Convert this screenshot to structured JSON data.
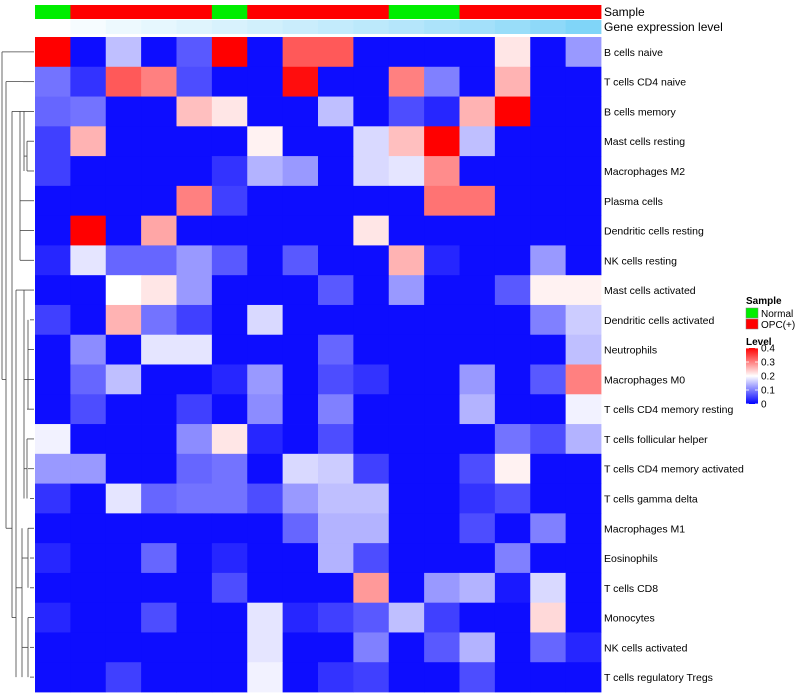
{
  "chart_data": {
    "type": "heatmap",
    "rows": [
      "B cells naive",
      "T cells CD4 naive",
      "B cells memory",
      "Mast cells resting",
      "Macrophages M2",
      "Plasma cells",
      "Dendritic cells resting",
      "NK cells resting",
      "Mast cells activated",
      "Dendritic cells activated",
      "Neutrophils",
      "Macrophages M0",
      "T cells CD4 memory resting",
      "T cells follicular helper",
      "T cells CD4 memory activated",
      "T cells gamma delta",
      "Macrophages M1",
      "Eosinophils",
      "T cells CD8",
      "Monocytes",
      "NK cells activated",
      "T cells regulatory  Tregs"
    ],
    "column_annotations": {
      "sample": {
        "label": "Sample",
        "values": [
          "Normal",
          "OPC(+)",
          "OPC(+)",
          "OPC(+)",
          "OPC(+)",
          "Normal",
          "OPC(+)",
          "OPC(+)",
          "OPC(+)",
          "OPC(+)",
          "Normal",
          "Normal",
          "OPC(+)",
          "OPC(+)",
          "OPC(+)",
          "OPC(+)"
        ]
      },
      "gene_expression_level": {
        "label": "Gene expression level",
        "values": [
          0.0,
          0.05,
          0.1,
          0.14,
          0.18,
          0.22,
          0.26,
          0.3,
          0.34,
          0.38,
          0.42,
          0.47,
          0.52,
          0.58,
          0.64,
          0.72
        ]
      }
    },
    "values": [
      [
        0.4,
        0.01,
        0.15,
        0.01,
        0.07,
        0.4,
        0.01,
        0.33,
        0.33,
        0.01,
        0.01,
        0.01,
        0.01,
        0.22,
        0.01,
        0.12
      ],
      [
        0.09,
        0.04,
        0.33,
        0.3,
        0.06,
        0.01,
        0.01,
        0.39,
        0.01,
        0.01,
        0.3,
        0.1,
        0.01,
        0.26,
        0.01,
        0.01
      ],
      [
        0.08,
        0.09,
        0.01,
        0.01,
        0.25,
        0.22,
        0.01,
        0.01,
        0.15,
        0.01,
        0.06,
        0.03,
        0.26,
        0.4,
        0.01,
        0.01
      ],
      [
        0.05,
        0.26,
        0.01,
        0.01,
        0.01,
        0.01,
        0.21,
        0.01,
        0.01,
        0.17,
        0.25,
        0.4,
        0.15,
        0.01,
        0.01,
        0.01
      ],
      [
        0.05,
        0.01,
        0.01,
        0.01,
        0.01,
        0.04,
        0.14,
        0.12,
        0.01,
        0.17,
        0.18,
        0.29,
        0.01,
        0.01,
        0.01,
        0.01
      ],
      [
        0.01,
        0.01,
        0.01,
        0.01,
        0.3,
        0.05,
        0.01,
        0.01,
        0.01,
        0.01,
        0.01,
        0.31,
        0.31,
        0.01,
        0.01,
        0.01
      ],
      [
        0.01,
        0.4,
        0.01,
        0.27,
        0.01,
        0.01,
        0.01,
        0.01,
        0.01,
        0.22,
        0.01,
        0.01,
        0.01,
        0.01,
        0.01,
        0.01
      ],
      [
        0.03,
        0.18,
        0.08,
        0.08,
        0.12,
        0.07,
        0.01,
        0.07,
        0.01,
        0.01,
        0.26,
        0.03,
        0.01,
        0.01,
        0.12,
        0.01
      ],
      [
        0.01,
        0.01,
        0.2,
        0.22,
        0.12,
        0.01,
        0.01,
        0.01,
        0.07,
        0.01,
        0.12,
        0.01,
        0.01,
        0.07,
        0.21,
        0.21
      ],
      [
        0.05,
        0.01,
        0.26,
        0.09,
        0.05,
        0.01,
        0.17,
        0.01,
        0.01,
        0.01,
        0.01,
        0.01,
        0.01,
        0.01,
        0.1,
        0.16
      ],
      [
        0.01,
        0.11,
        0.01,
        0.18,
        0.18,
        0.01,
        0.01,
        0.01,
        0.08,
        0.01,
        0.01,
        0.01,
        0.01,
        0.01,
        0.01,
        0.15
      ],
      [
        0.01,
        0.08,
        0.15,
        0.01,
        0.01,
        0.03,
        0.12,
        0.01,
        0.06,
        0.04,
        0.01,
        0.01,
        0.12,
        0.01,
        0.07,
        0.3
      ],
      [
        0.01,
        0.06,
        0.01,
        0.01,
        0.05,
        0.01,
        0.11,
        0.01,
        0.1,
        0.01,
        0.01,
        0.01,
        0.14,
        0.01,
        0.01,
        0.19
      ],
      [
        0.19,
        0.01,
        0.01,
        0.01,
        0.11,
        0.22,
        0.03,
        0.01,
        0.06,
        0.01,
        0.01,
        0.01,
        0.01,
        0.09,
        0.06,
        0.14
      ],
      [
        0.12,
        0.12,
        0.01,
        0.01,
        0.08,
        0.09,
        0.01,
        0.17,
        0.16,
        0.05,
        0.01,
        0.01,
        0.06,
        0.21,
        0.01,
        0.01
      ],
      [
        0.04,
        0.01,
        0.18,
        0.08,
        0.09,
        0.09,
        0.06,
        0.12,
        0.15,
        0.15,
        0.01,
        0.01,
        0.04,
        0.06,
        0.01,
        0.01
      ],
      [
        0.01,
        0.01,
        0.01,
        0.01,
        0.01,
        0.01,
        0.01,
        0.08,
        0.14,
        0.14,
        0.01,
        0.01,
        0.06,
        0.01,
        0.1,
        0.01
      ],
      [
        0.03,
        0.01,
        0.01,
        0.08,
        0.01,
        0.03,
        0.01,
        0.01,
        0.14,
        0.06,
        0.01,
        0.01,
        0.01,
        0.1,
        0.01,
        0.01
      ],
      [
        0.01,
        0.01,
        0.01,
        0.01,
        0.01,
        0.06,
        0.01,
        0.01,
        0.01,
        0.28,
        0.01,
        0.12,
        0.14,
        0.02,
        0.17,
        0.01
      ],
      [
        0.03,
        0.01,
        0.01,
        0.06,
        0.01,
        0.01,
        0.18,
        0.03,
        0.05,
        0.07,
        0.15,
        0.05,
        0.01,
        0.01,
        0.23,
        0.01
      ],
      [
        0.01,
        0.01,
        0.01,
        0.01,
        0.01,
        0.01,
        0.18,
        0.01,
        0.01,
        0.1,
        0.01,
        0.07,
        0.14,
        0.01,
        0.08,
        0.03
      ],
      [
        0.01,
        0.01,
        0.05,
        0.01,
        0.01,
        0.01,
        0.19,
        0.01,
        0.04,
        0.05,
        0.01,
        0.01,
        0.06,
        0.01,
        0.01,
        0.01
      ]
    ],
    "dendrogram": "rows",
    "legends": {
      "sample": {
        "title": "Sample",
        "entries": [
          {
            "label": "Normal",
            "color": "#00ee00"
          },
          {
            "label": "OPC(+)",
            "color": "#ff0000"
          }
        ]
      },
      "level": {
        "title": "Level",
        "ticks": [
          "0.4",
          "0.3",
          "0.2",
          "0.1",
          "0"
        ],
        "tick_values": [
          0.4,
          0.3,
          0.2,
          0.1,
          0.0
        ]
      }
    },
    "color_scale": {
      "min": 0,
      "mid": 0.2,
      "max": 0.4,
      "low": "#0000ff",
      "middle": "#ffffff",
      "high": "#ff0000"
    },
    "gene_expression_colors": {
      "low": "#ffffff",
      "high": "#4fc4f5"
    }
  }
}
